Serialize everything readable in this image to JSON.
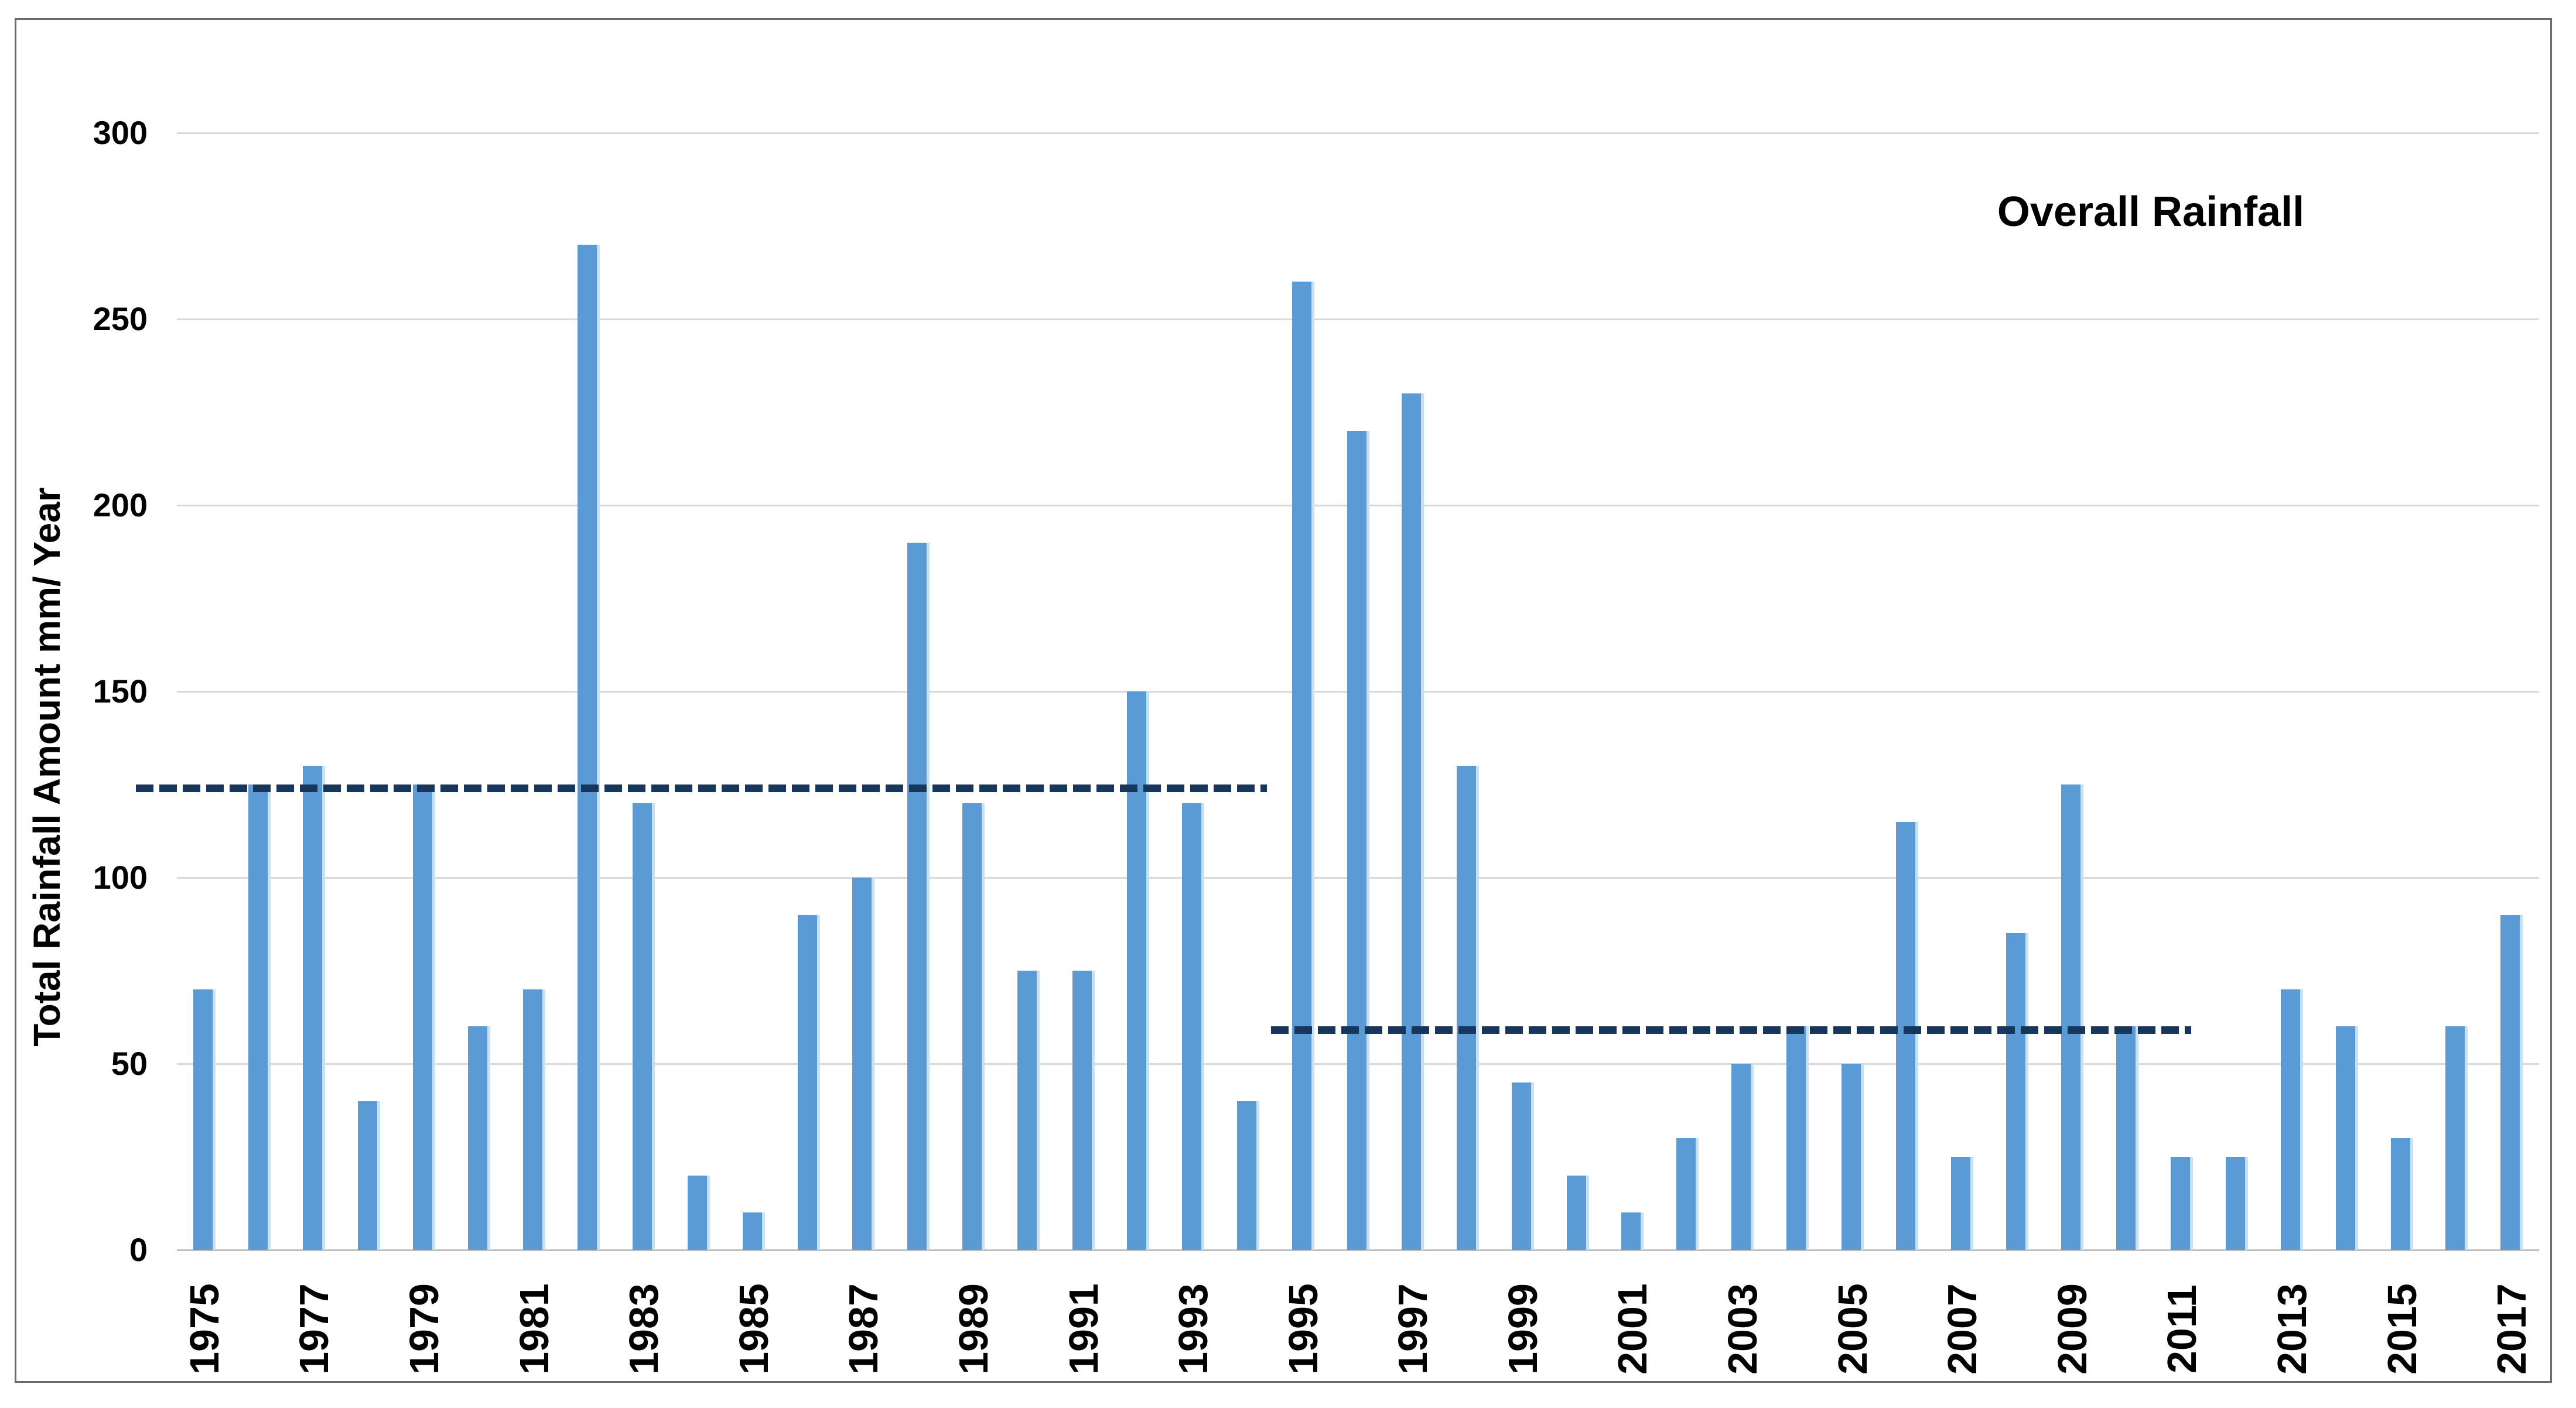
{
  "chart_title": "Overall Rainfall",
  "y_axis": {
    "title": "Total Rainfall Amount  mm/ Year",
    "tick_labels": [
      "300",
      "250",
      "200",
      "150",
      "100",
      "50",
      "0"
    ]
  },
  "x_axis": {
    "tick_years": [
      1975,
      1977,
      1979,
      1981,
      1983,
      1985,
      1987,
      1989,
      1991,
      1993,
      1995,
      1997,
      1999,
      2001,
      2003,
      2005,
      2007,
      2009,
      2011,
      2013,
      2015,
      2017
    ]
  },
  "colors": {
    "bar": "#5B9BD5",
    "bar_edge_highlight": "#C9DFF2",
    "dashed_line": "#17365D",
    "gridline": "#D9D9D9",
    "axis_line": "#BFBFBF",
    "frame_border": "#6B6B6B",
    "text": "#000000",
    "background": "#FFFFFF"
  },
  "chart_data": {
    "type": "bar",
    "title": "Overall Rainfall",
    "xlabel": "",
    "ylabel": "Total Rainfall Amount  mm/ Year",
    "ylim": [
      0,
      300
    ],
    "yticks": [
      0,
      50,
      100,
      150,
      200,
      250,
      300
    ],
    "grid": "horizontal",
    "legend_position": "none",
    "categories": [
      1975,
      1976,
      1977,
      1978,
      1979,
      1980,
      1981,
      1982,
      1983,
      1984,
      1985,
      1986,
      1987,
      1988,
      1989,
      1990,
      1991,
      1992,
      1993,
      1994,
      1995,
      1996,
      1997,
      1998,
      1999,
      2000,
      2001,
      2002,
      2003,
      2004,
      2005,
      2006,
      2007,
      2008,
      2009,
      2010,
      2011,
      2012,
      2013,
      2014,
      2015,
      2016,
      2017
    ],
    "values": [
      70,
      125,
      130,
      40,
      125,
      60,
      70,
      270,
      120,
      20,
      10,
      90,
      100,
      190,
      120,
      75,
      75,
      150,
      120,
      40,
      260,
      220,
      230,
      130,
      45,
      20,
      10,
      30,
      50,
      60,
      50,
      115,
      25,
      85,
      125,
      60,
      25,
      25,
      70,
      60,
      30,
      60,
      90
    ],
    "reference_lines": [
      {
        "value": 124,
        "from_year": 1975,
        "to_year": 1994,
        "style": "dashed"
      },
      {
        "value": 59,
        "from_year": 1995,
        "to_year": 2011,
        "style": "dashed"
      }
    ]
  }
}
